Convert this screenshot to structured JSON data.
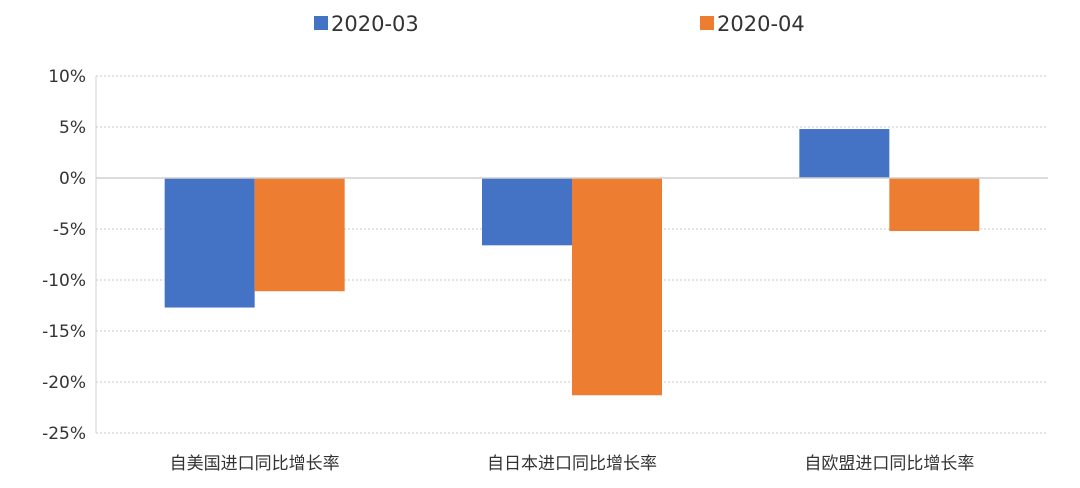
{
  "chart_data": {
    "type": "bar",
    "categories": [
      "自美国进口同比增长率",
      "自日本进口同比增长率",
      "自欧盟进口同比增长率"
    ],
    "series": [
      {
        "name": "2020-03",
        "color": "#4472C4",
        "values": [
          -12.7,
          -6.6,
          4.8
        ]
      },
      {
        "name": "2020-04",
        "color": "#ED7D31",
        "values": [
          -11.1,
          -21.3,
          -5.2
        ]
      }
    ],
    "ylim": [
      -25,
      10
    ],
    "yticks": [
      10,
      5,
      0,
      -5,
      -10,
      -15,
      -20,
      -25
    ],
    "ytick_labels": [
      "10%",
      "5%",
      "0%",
      "-5%",
      "-10%",
      "-15%",
      "-20%",
      "-25%"
    ],
    "grid": true,
    "legend_position": "top-center"
  }
}
